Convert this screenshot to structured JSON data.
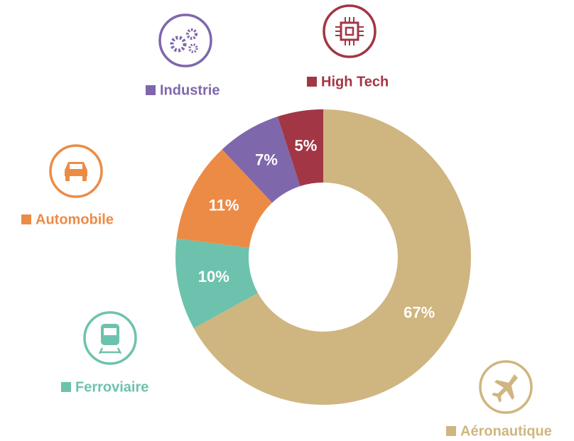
{
  "chart_data": {
    "type": "donut",
    "categories": [
      "Aéronautique",
      "Ferroviaire",
      "Automobile",
      "Industrie",
      "High Tech"
    ],
    "values": [
      67,
      10,
      11,
      7,
      5
    ],
    "value_labels": [
      "67%",
      "10%",
      "11%",
      "7%",
      "5%"
    ],
    "colors": [
      "#cfb580",
      "#6dc2ad",
      "#ec8b45",
      "#7f67ab",
      "#a23645"
    ]
  }
}
